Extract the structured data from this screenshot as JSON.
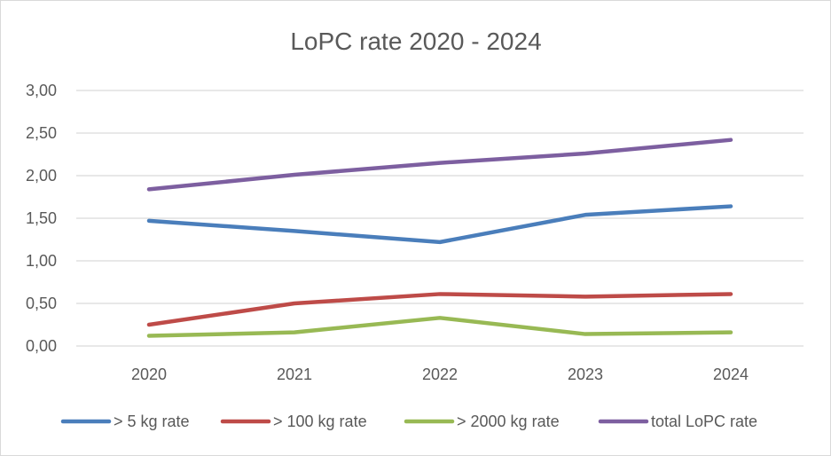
{
  "chart_data": {
    "type": "line",
    "title": "LoPC rate 2020 - 2024",
    "categories": [
      "2020",
      "2021",
      "2022",
      "2023",
      "2024"
    ],
    "y_ticks": [
      "0,00",
      "0,50",
      "1,00",
      "1,50",
      "2,00",
      "2,50",
      "3,00"
    ],
    "ylim": [
      0,
      3
    ],
    "grid": true,
    "legend_position": "bottom",
    "series": [
      {
        "name": "> 5 kg rate",
        "color": "#4a7ebb",
        "values": [
          1.47,
          1.35,
          1.22,
          1.54,
          1.64
        ]
      },
      {
        "name": "> 100 kg rate",
        "color": "#be4b48",
        "values": [
          0.25,
          0.5,
          0.61,
          0.58,
          0.61
        ]
      },
      {
        "name": "> 2000 kg rate",
        "color": "#98b954",
        "values": [
          0.12,
          0.16,
          0.33,
          0.14,
          0.16
        ]
      },
      {
        "name": "total LoPC rate",
        "color": "#7d5fa0",
        "values": [
          1.84,
          2.01,
          2.15,
          2.26,
          2.42
        ]
      }
    ]
  }
}
